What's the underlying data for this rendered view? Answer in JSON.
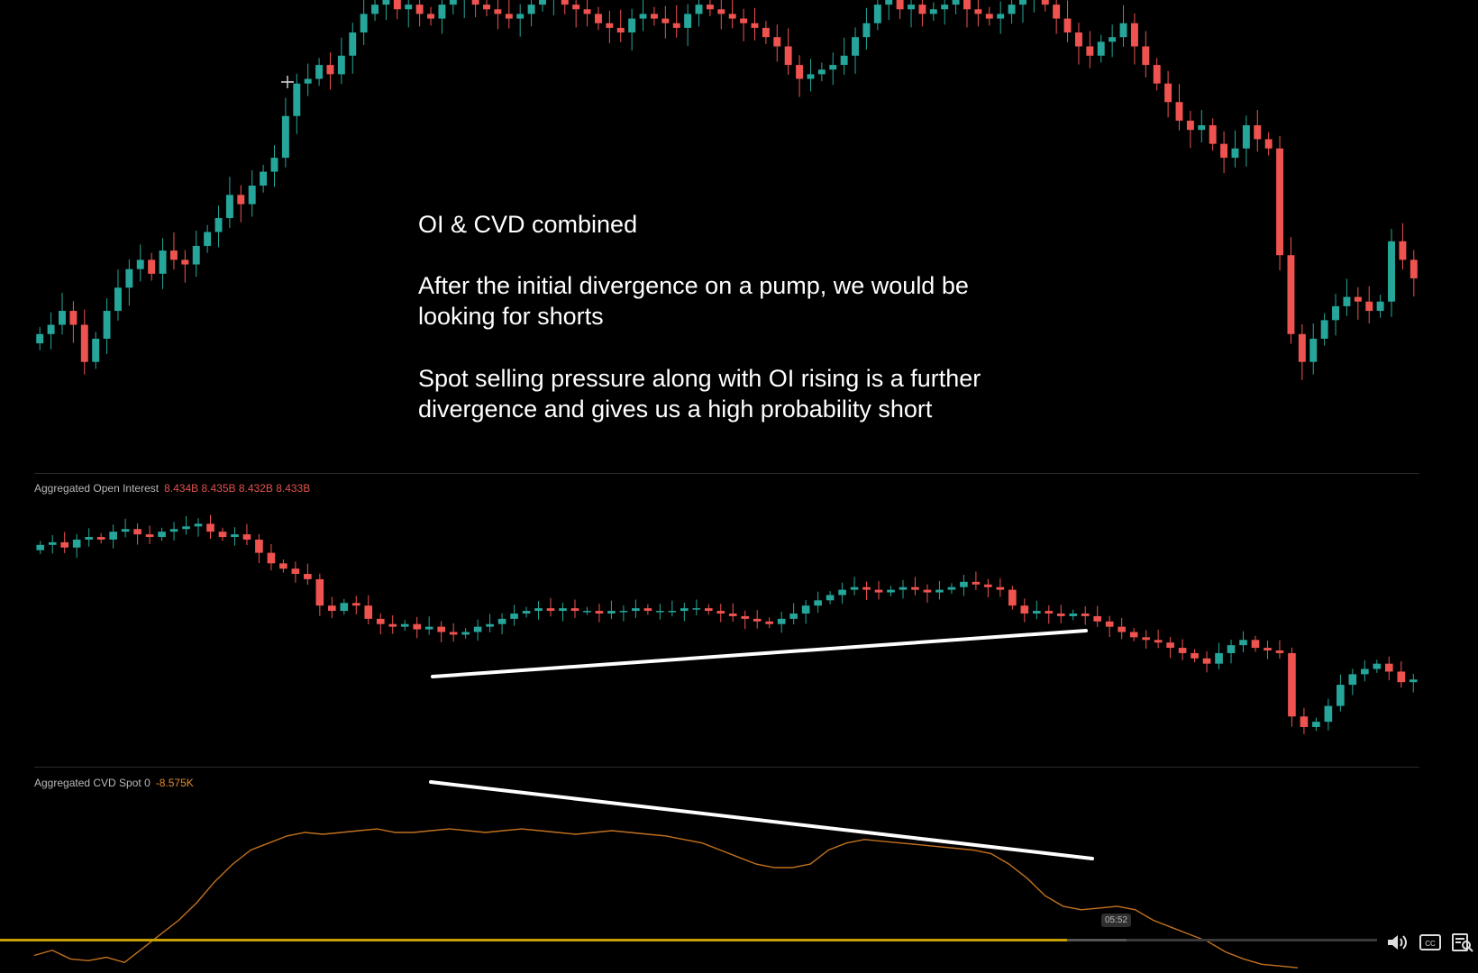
{
  "annotation": {
    "title": "OI & CVD combined",
    "para1": "After the initial divergence on a pump, we would be\nlooking for shorts",
    "para2": "Spot selling pressure along with OI rising is a further\ndivergence and gives us a high probability short"
  },
  "panes": {
    "oi": {
      "label": "Aggregated Open Interest",
      "values": "8.434B  8.435B  8.432B  8.433B",
      "value_color": "#e0524d"
    },
    "cvd": {
      "label": "Aggregated CVD Spot 0",
      "value": "-8.575K",
      "value_color": "#e08a2c"
    }
  },
  "colors": {
    "up": "#26a69a",
    "down": "#ef5350",
    "cvd_line": "#c2711f",
    "trendline": "#ffffff",
    "progress": "#c7a000"
  },
  "player": {
    "time_tooltip": "05:52",
    "progress_fraction": 0.775,
    "icons": [
      "volume-icon",
      "closed-captions-icon",
      "transcript-icon"
    ]
  },
  "chart_data": [
    {
      "type": "candlestick",
      "name": "price",
      "note": "values are relative price levels (0 = lowest, 100 = highest visible)",
      "closes": [
        28,
        30,
        33,
        30,
        22,
        27,
        33,
        38,
        42,
        44,
        41,
        46,
        44,
        43,
        47,
        50,
        53,
        58,
        56,
        60,
        63,
        66,
        75,
        82,
        83,
        86,
        84,
        88,
        93,
        97,
        99,
        100,
        98,
        99,
        97,
        96,
        99,
        100,
        101,
        99,
        98,
        97,
        96,
        97,
        99,
        100,
        101,
        99,
        98,
        97,
        95,
        94,
        93,
        96,
        97,
        96,
        95,
        94,
        97,
        99,
        98,
        97,
        96,
        95,
        94,
        92,
        90,
        86,
        83,
        84,
        85,
        86,
        88,
        92,
        95,
        99,
        100,
        98,
        99,
        97,
        98,
        99,
        100,
        98,
        97,
        96,
        97,
        99,
        100,
        101,
        99,
        96,
        93,
        90,
        88,
        91,
        92,
        95,
        90,
        86,
        82,
        78,
        74,
        72,
        73,
        69,
        66,
        68,
        73,
        70,
        68,
        45,
        28,
        22,
        27,
        31,
        34,
        36,
        35,
        33,
        35,
        48,
        44,
        40
      ]
    },
    {
      "type": "candlestick",
      "name": "Aggregated Open Interest",
      "note": "values are relative levels (0 = lowest, 100 = highest visible)",
      "closes": [
        83,
        84,
        82,
        85,
        86,
        85,
        88,
        89,
        87,
        86,
        88,
        89,
        90,
        91,
        88,
        86,
        87,
        85,
        80,
        76,
        74,
        72,
        70,
        60,
        58,
        61,
        60,
        55,
        53,
        52,
        53,
        51,
        52,
        50,
        49,
        50,
        52,
        53,
        55,
        57,
        58,
        59,
        58,
        59,
        58,
        58,
        57,
        58,
        58,
        59,
        58,
        58,
        58,
        59,
        59,
        58,
        57,
        56,
        55,
        54,
        53,
        55,
        57,
        60,
        62,
        64,
        66,
        67,
        66,
        65,
        66,
        67,
        66,
        65,
        66,
        67,
        69,
        68,
        67,
        66,
        60,
        57,
        58,
        57,
        56,
        57,
        56,
        54,
        52,
        50,
        48,
        47,
        46,
        44,
        42,
        40,
        38,
        42,
        45,
        47,
        44,
        43,
        42,
        18,
        14,
        16,
        22,
        30,
        34,
        36,
        38,
        35,
        31,
        32
      ]
    },
    {
      "type": "line",
      "name": "Aggregated CVD Spot 0",
      "note": "values are relative levels (0 = lowest, 100 = highest visible)",
      "values": [
        10,
        13,
        8,
        7,
        9,
        6,
        14,
        22,
        30,
        40,
        52,
        62,
        70,
        74,
        78,
        80,
        79,
        80,
        81,
        82,
        80,
        80,
        81,
        82,
        81,
        80,
        81,
        82,
        81,
        80,
        79,
        80,
        81,
        80,
        79,
        78,
        76,
        74,
        70,
        66,
        62,
        60,
        60,
        62,
        70,
        74,
        76,
        75,
        74,
        73,
        72,
        71,
        70,
        68,
        62,
        54,
        44,
        38,
        36,
        37,
        38,
        36,
        30,
        26,
        22,
        18,
        12,
        8,
        5,
        4,
        3
      ]
    }
  ]
}
